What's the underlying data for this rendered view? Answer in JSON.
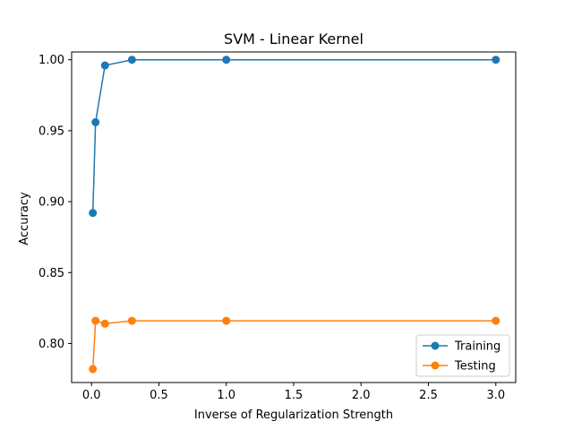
{
  "chart_data": {
    "type": "line",
    "title": "SVM - Linear Kernel",
    "xlabel": "Inverse of Regularization Strength",
    "ylabel": "Accuracy",
    "x": [
      0.01,
      0.03,
      0.1,
      0.3,
      1.0,
      3.0
    ],
    "xlim": [
      -0.1475,
      3.1475
    ],
    "ylim": [
      0.7725,
      1.0055
    ],
    "xticks": [
      0.0,
      0.5,
      1.0,
      1.5,
      2.0,
      2.5,
      3.0
    ],
    "xtick_labels": [
      "0.0",
      "0.5",
      "1.0",
      "1.5",
      "2.0",
      "2.5",
      "3.0"
    ],
    "yticks": [
      0.8,
      0.85,
      0.9,
      0.95,
      1.0
    ],
    "ytick_labels": [
      "0.80",
      "0.85",
      "0.90",
      "0.95",
      "1.00"
    ],
    "grid": false,
    "legend_position": "lower-right",
    "series": [
      {
        "name": "Training",
        "color": "#1f77b4",
        "values": [
          0.892,
          0.956,
          0.996,
          1.0,
          1.0,
          1.0
        ]
      },
      {
        "name": "Testing",
        "color": "#ff7f0e",
        "values": [
          0.782,
          0.816,
          0.814,
          0.816,
          0.816,
          0.816
        ]
      }
    ]
  }
}
